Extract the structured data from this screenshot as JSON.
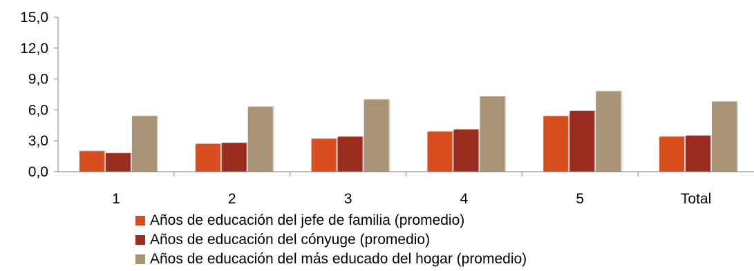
{
  "chart_data": {
    "type": "bar",
    "categories": [
      "1",
      "2",
      "3",
      "4",
      "5",
      "Total"
    ],
    "series": [
      {
        "name": "Años de educación del jefe de familia (promedio)",
        "color": "#d84e1e",
        "values": [
          2.0,
          2.7,
          3.2,
          3.9,
          5.4,
          3.4
        ]
      },
      {
        "name": "Años de educación del cónyuge (promedio)",
        "color": "#9b2d20",
        "values": [
          1.8,
          2.8,
          3.4,
          4.1,
          5.9,
          3.5
        ]
      },
      {
        "name": "Años de educación del más educado del hogar (promedio)",
        "color": "#a89474",
        "values": [
          5.4,
          6.3,
          7.0,
          7.3,
          7.8,
          6.8
        ]
      }
    ],
    "yticks": [
      "0,0",
      "3,0",
      "6,0",
      "9,0",
      "12,0",
      "15,0"
    ],
    "ylim": [
      0,
      15
    ],
    "grid": false,
    "legend_position": "bottom"
  }
}
